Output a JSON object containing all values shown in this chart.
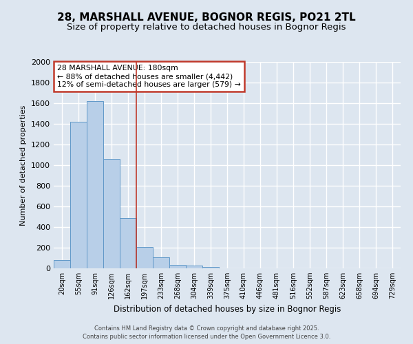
{
  "title1": "28, MARSHALL AVENUE, BOGNOR REGIS, PO21 2TL",
  "title2": "Size of property relative to detached houses in Bognor Regis",
  "xlabel": "Distribution of detached houses by size in Bognor Regis",
  "ylabel": "Number of detached properties",
  "categories": [
    "20sqm",
    "55sqm",
    "91sqm",
    "126sqm",
    "162sqm",
    "197sqm",
    "233sqm",
    "268sqm",
    "304sqm",
    "339sqm",
    "375sqm",
    "410sqm",
    "446sqm",
    "481sqm",
    "516sqm",
    "552sqm",
    "587sqm",
    "623sqm",
    "658sqm",
    "694sqm",
    "729sqm"
  ],
  "values": [
    80,
    1420,
    1620,
    1060,
    490,
    205,
    105,
    35,
    25,
    15,
    0,
    0,
    0,
    0,
    0,
    0,
    0,
    0,
    0,
    0,
    0
  ],
  "bar_color": "#b8cfe8",
  "bar_edge_color": "#6098c8",
  "ylim": [
    0,
    2000
  ],
  "yticks": [
    0,
    200,
    400,
    600,
    800,
    1000,
    1200,
    1400,
    1600,
    1800,
    2000
  ],
  "vline_x_index": 4.5,
  "vline_color": "#c0392b",
  "annotation_title": "28 MARSHALL AVENUE: 180sqm",
  "annotation_line2": "← 88% of detached houses are smaller (4,442)",
  "annotation_line3": "12% of semi-detached houses are larger (579) →",
  "annotation_box_color": "#c0392b",
  "annotation_bg": "#ffffff",
  "bg_color": "#dde6f0",
  "grid_color": "#ffffff",
  "footer1": "Contains HM Land Registry data © Crown copyright and database right 2025.",
  "footer2": "Contains public sector information licensed under the Open Government Licence 3.0.",
  "title_fontsize": 11,
  "subtitle_fontsize": 9.5
}
